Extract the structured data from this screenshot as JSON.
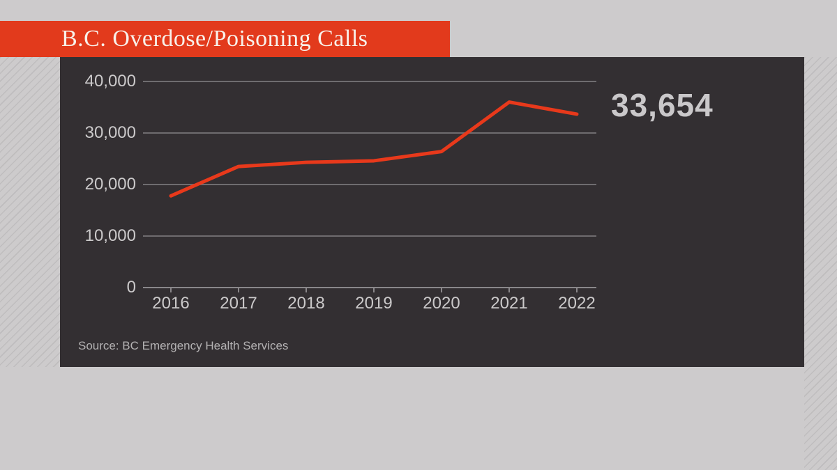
{
  "page": {
    "background_color": "#cdcbcc",
    "stripe_color": "#bfbdbe"
  },
  "banner": {
    "title": "B.C. Overdose/Poisoning Calls",
    "background_color": "#e23a1c",
    "text_color": "#f8f1ea"
  },
  "panel": {
    "background_color": "#332f32"
  },
  "chart_data": {
    "type": "line",
    "title": "B.C. Overdose/Poisoning Calls",
    "categories": [
      "2016",
      "2017",
      "2018",
      "2019",
      "2020",
      "2021",
      "2022"
    ],
    "values": [
      17800,
      23500,
      24300,
      24600,
      26400,
      36000,
      33654
    ],
    "end_label": "33,654",
    "yticks": [
      0,
      10000,
      20000,
      30000,
      40000
    ],
    "ytick_labels": [
      "0",
      "10,000",
      "20,000",
      "30,000",
      "40,000"
    ],
    "ylim": [
      0,
      40000
    ],
    "grid": true,
    "legend": "none",
    "xlabel": "",
    "ylabel": "",
    "line_color": "#e8391b",
    "grid_color": "#6f6c6f",
    "axis_line_color": "#8a878a",
    "axis_text_color": "#cbc9ca",
    "end_label_color": "#cac8ca",
    "source": "Source: BC Emergency Health Services",
    "source_color": "#b4b2b3"
  }
}
